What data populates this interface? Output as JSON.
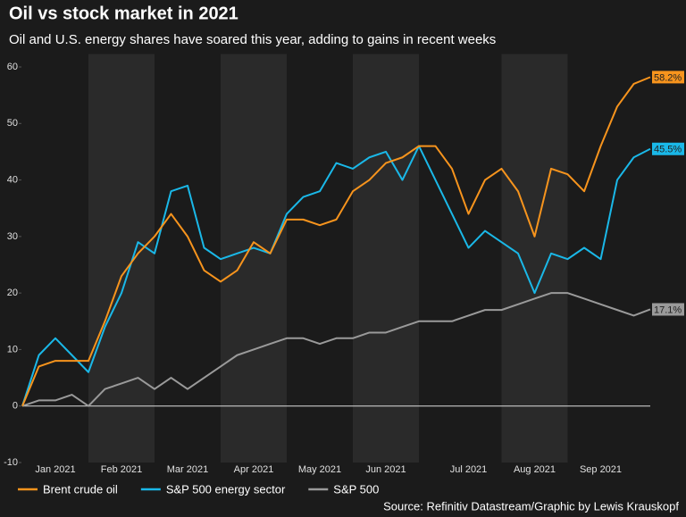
{
  "chart_data": {
    "type": "line",
    "title": "Oil vs stock market in 2021",
    "subtitle": "Oil and U.S. energy shares have soared this year, adding to gains in recent weeks",
    "source": "Source: Refinitiv Datastream/Graphic by Lewis Krauskopf",
    "categories": [
      null,
      null,
      "Jan 2021",
      null,
      null,
      null,
      "Feb 2021",
      null,
      null,
      null,
      "Mar 2021",
      null,
      null,
      null,
      "Apr 2021",
      null,
      null,
      null,
      "May 2021",
      null,
      null,
      null,
      "Jun 2021",
      null,
      null,
      null,
      null,
      "Jul 2021",
      null,
      null,
      null,
      "Aug 2021",
      null,
      null,
      null,
      "Sep 2021",
      null,
      null,
      null
    ],
    "series": [
      {
        "name": "Brent crude oil",
        "color": "#f7941d",
        "values": [
          0,
          7,
          8,
          8,
          8,
          15,
          23,
          27,
          30,
          34,
          30,
          24,
          22,
          24,
          29,
          27,
          33,
          33,
          32,
          33,
          38,
          40,
          43,
          44,
          46,
          46,
          42,
          34,
          40,
          42,
          38,
          30,
          42,
          41,
          38,
          46,
          53,
          57,
          58.2
        ],
        "value_labels": [
          null,
          null,
          null,
          null,
          null,
          null,
          null,
          null,
          null,
          null,
          null,
          null,
          null,
          null,
          null,
          null,
          null,
          null,
          null,
          null,
          null,
          null,
          null,
          null,
          null,
          null,
          null,
          null,
          null,
          null,
          null,
          null,
          null,
          null,
          null,
          null,
          null,
          null,
          "58.2%"
        ]
      },
      {
        "name": "S&P 500 energy sector",
        "color": "#1ab8e8",
        "values": [
          0,
          9,
          12,
          9,
          6,
          14,
          20,
          29,
          27,
          38,
          39,
          28,
          26,
          27,
          28,
          27,
          34,
          37,
          38,
          43,
          42,
          44,
          45,
          40,
          46,
          40,
          34,
          28,
          31,
          29,
          27,
          20,
          27,
          26,
          28,
          26,
          40,
          44,
          45.5
        ],
        "value_labels": [
          null,
          null,
          null,
          null,
          null,
          null,
          null,
          null,
          null,
          null,
          null,
          null,
          null,
          null,
          null,
          null,
          null,
          null,
          null,
          null,
          null,
          null,
          null,
          null,
          null,
          null,
          null,
          null,
          null,
          null,
          null,
          null,
          null,
          null,
          null,
          null,
          null,
          null,
          "45.5%"
        ]
      },
      {
        "name": "S&P 500",
        "color": "#9a9a9a",
        "values": [
          0,
          1,
          1,
          2,
          0,
          3,
          4,
          5,
          3,
          5,
          3,
          5,
          7,
          9,
          10,
          11,
          12,
          12,
          11,
          12,
          12,
          13,
          13,
          14,
          15,
          15,
          15,
          16,
          17,
          17,
          18,
          19,
          20,
          20,
          19,
          18,
          17,
          16,
          17.1
        ],
        "value_labels": [
          null,
          null,
          null,
          null,
          null,
          null,
          null,
          null,
          null,
          null,
          null,
          null,
          null,
          null,
          null,
          null,
          null,
          null,
          null,
          null,
          null,
          null,
          null,
          null,
          null,
          null,
          null,
          null,
          null,
          null,
          null,
          null,
          null,
          null,
          null,
          null,
          null,
          null,
          "17.1%"
        ]
      }
    ],
    "ylim": [
      -10,
      61.5
    ],
    "yticks": [
      -10,
      0,
      10,
      20,
      30,
      40,
      50,
      60
    ],
    "grid": false
  }
}
